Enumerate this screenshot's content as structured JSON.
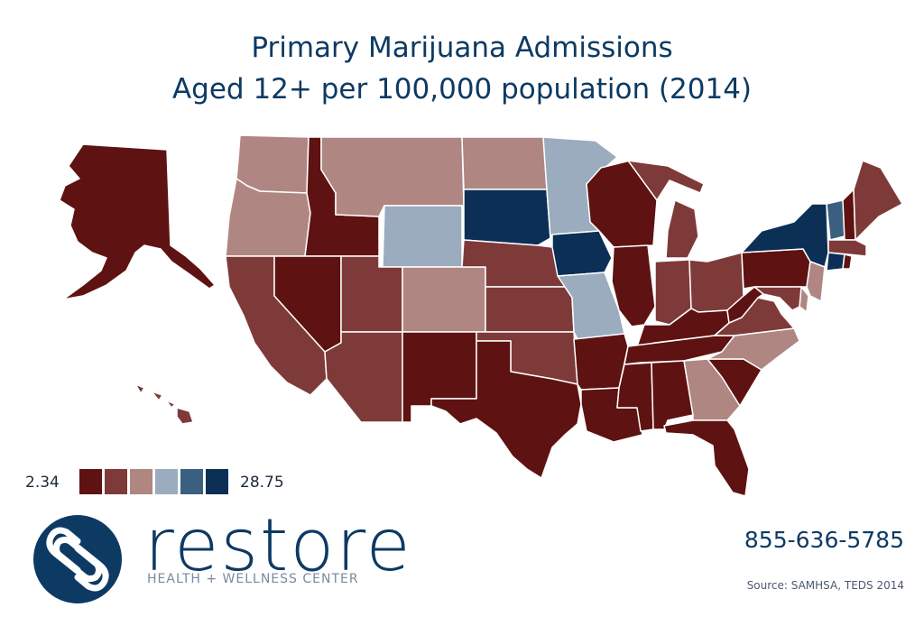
{
  "title": {
    "line1": "Primary Marijuana Admissions",
    "line2": "Aged 12+ per 100,000 population (2014)"
  },
  "legend": {
    "min_label": "2.34",
    "max_label": "28.75",
    "colors": [
      "#5e1211",
      "#7e3a38",
      "#b08682",
      "#9aacbe",
      "#3b5f80",
      "#0b2f55"
    ]
  },
  "map": {
    "bins": {
      "AK": 0,
      "HI": 1,
      "WA": 2,
      "OR": 2,
      "CA": 1,
      "ID": 0,
      "NV": 0,
      "MT": 2,
      "WY": 3,
      "UT": 1,
      "AZ": 1,
      "CO": 2,
      "NM": 0,
      "ND": 2,
      "SD": 5,
      "NE": 1,
      "KS": 1,
      "OK": 1,
      "TX": 0,
      "MN": 3,
      "IA": 5,
      "MO": 3,
      "AR": 0,
      "LA": 0,
      "WI": 0,
      "IL": 0,
      "MI": 1,
      "IN": 1,
      "OH": 1,
      "KY": 0,
      "TN": 0,
      "MS": 0,
      "AL": 0,
      "GA": 2,
      "FL": 0,
      "SC": 0,
      "NC": 2,
      "VA": 1,
      "WV": 0,
      "PA": 0,
      "NY": 5,
      "VT": 4,
      "NH": 0,
      "ME": 1,
      "MA": 1,
      "CT": 5,
      "RI": 0,
      "NJ": 2,
      "DE": 2,
      "MD": 1
    }
  },
  "brand": {
    "name": "restore",
    "tagline": "HEALTH + WELLNESS CENTER",
    "logo_color": "#0d3a63"
  },
  "contact": {
    "phone": "855-636-5785"
  },
  "source": "Source: SAMHSA, TEDS 2014"
}
